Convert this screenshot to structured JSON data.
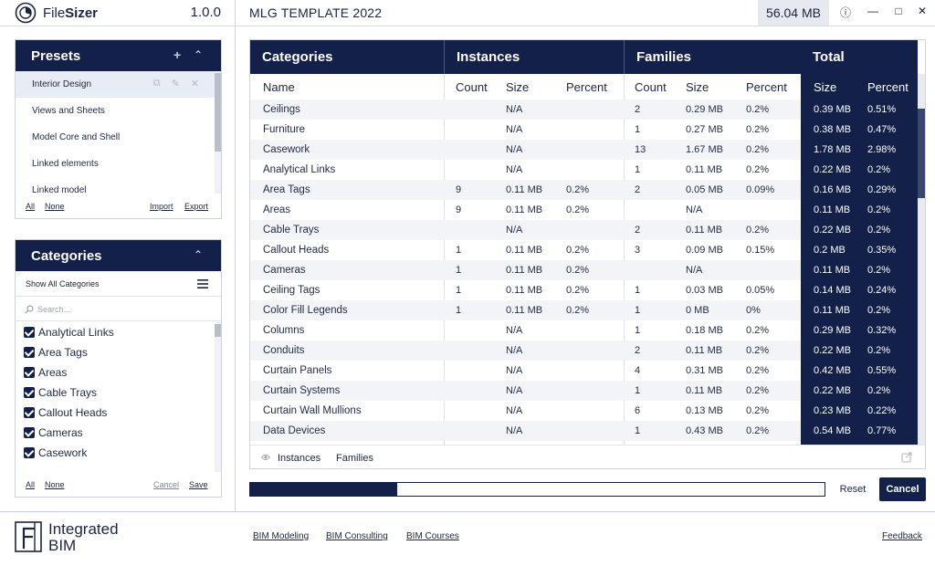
{
  "app": {
    "name_prefix": "File",
    "name_bold": "Sizer",
    "version": "1.0.0"
  },
  "titlebar": {
    "document": "MLG TEMPLATE 2022",
    "file_size": "56.04 MB"
  },
  "presets": {
    "title": "Presets",
    "items": [
      "Interior Design",
      "Views and Sheets",
      "Model Core and Shell",
      "Linked elements",
      "Linked model"
    ],
    "footer": {
      "all": "All",
      "none": "None",
      "import": "Import",
      "export": "Export"
    }
  },
  "categories_panel": {
    "title": "Categories",
    "show_all": "Show All Categories",
    "search_placeholder": "Search...",
    "items": [
      "Analytical Links",
      "Area Tags",
      "Areas",
      "Cable Trays",
      "Callout Heads",
      "Cameras",
      "Casework"
    ],
    "footer": {
      "all": "All",
      "none": "None",
      "cancel": "Cancel",
      "save": "Save"
    }
  },
  "table": {
    "groups": {
      "categories": "Categories",
      "instances": "Instances",
      "families": "Families",
      "total": "Total"
    },
    "columns": {
      "name": "Name",
      "count": "Count",
      "size": "Size",
      "percent": "Percent"
    },
    "rows": [
      {
        "name": "Ceilings",
        "ic": "",
        "is": "N/A",
        "ip": "",
        "fc": "2",
        "fs": "0.29 MB",
        "fp": "0.2%",
        "ts": "0.39 MB",
        "tp": "0.51%"
      },
      {
        "name": "Furniture",
        "ic": "",
        "is": "N/A",
        "ip": "",
        "fc": "1",
        "fs": "0.27 MB",
        "fp": "0.2%",
        "ts": "0.38 MB",
        "tp": "0.47%"
      },
      {
        "name": "Casework",
        "ic": "",
        "is": "N/A",
        "ip": "",
        "fc": "13",
        "fs": "1.67 MB",
        "fp": "0.2%",
        "ts": "1.78 MB",
        "tp": "2.98%"
      },
      {
        "name": "Analytical Links",
        "ic": "",
        "is": "N/A",
        "ip": "",
        "fc": "1",
        "fs": "0.11 MB",
        "fp": "0.2%",
        "ts": "0.22 MB",
        "tp": "0.2%"
      },
      {
        "name": "Area Tags",
        "ic": "9",
        "is": "0.11 MB",
        "ip": "0.2%",
        "fc": "2",
        "fs": "0.05 MB",
        "fp": "0.09%",
        "ts": "0.16 MB",
        "tp": "0.29%"
      },
      {
        "name": "Areas",
        "ic": "9",
        "is": "0.11 MB",
        "ip": "0.2%",
        "fc": "",
        "fs": "N/A",
        "fp": "",
        "ts": "0.11 MB",
        "tp": "0.2%"
      },
      {
        "name": "Cable Trays",
        "ic": "",
        "is": "N/A",
        "ip": "",
        "fc": "2",
        "fs": "0.11 MB",
        "fp": "0.2%",
        "ts": "0.22 MB",
        "tp": "0.2%"
      },
      {
        "name": "Callout Heads",
        "ic": "1",
        "is": "0.11 MB",
        "ip": "0.2%",
        "fc": "3",
        "fs": "0.09 MB",
        "fp": "0.15%",
        "ts": "0.2 MB",
        "tp": "0.35%"
      },
      {
        "name": "Cameras",
        "ic": "1",
        "is": "0.11 MB",
        "ip": "0.2%",
        "fc": "",
        "fs": "N/A",
        "fp": "",
        "ts": "0.11 MB",
        "tp": "0.2%"
      },
      {
        "name": "Ceiling Tags",
        "ic": "1",
        "is": "0.11 MB",
        "ip": "0.2%",
        "fc": "1",
        "fs": "0.03 MB",
        "fp": "0.05%",
        "ts": "0.14 MB",
        "tp": "0.24%"
      },
      {
        "name": "Color Fill Legends",
        "ic": "1",
        "is": "0.11 MB",
        "ip": "0.2%",
        "fc": "1",
        "fs": "0 MB",
        "fp": "0%",
        "ts": "0.11 MB",
        "tp": "0.2%"
      },
      {
        "name": "Columns",
        "ic": "",
        "is": "N/A",
        "ip": "",
        "fc": "1",
        "fs": "0.18 MB",
        "fp": "0.2%",
        "ts": "0.29 MB",
        "tp": "0.32%"
      },
      {
        "name": "Conduits",
        "ic": "",
        "is": "N/A",
        "ip": "",
        "fc": "2",
        "fs": "0.11 MB",
        "fp": "0.2%",
        "ts": "0.22 MB",
        "tp": "0.2%"
      },
      {
        "name": "Curtain Panels",
        "ic": "",
        "is": "N/A",
        "ip": "",
        "fc": "4",
        "fs": "0.31 MB",
        "fp": "0.2%",
        "ts": "0.42 MB",
        "tp": "0.55%"
      },
      {
        "name": "Curtain Systems",
        "ic": "",
        "is": "N/A",
        "ip": "",
        "fc": "1",
        "fs": "0.11 MB",
        "fp": "0.2%",
        "ts": "0.22 MB",
        "tp": "0.2%"
      },
      {
        "name": "Curtain Wall Mullions",
        "ic": "",
        "is": "N/A",
        "ip": "",
        "fc": "6",
        "fs": "0.13 MB",
        "fp": "0.2%",
        "ts": "0.23 MB",
        "tp": "0.22%"
      },
      {
        "name": "Data Devices",
        "ic": "",
        "is": "N/A",
        "ip": "",
        "fc": "1",
        "fs": "0.43 MB",
        "fp": "0.2%",
        "ts": "0.54 MB",
        "tp": "0.77%"
      }
    ],
    "footer": {
      "instances": "Instances",
      "families": "Families"
    }
  },
  "progress": {
    "fraction": 0.256
  },
  "buttons": {
    "reset": "Reset",
    "cancel": "Cancel"
  },
  "footer": {
    "brand_line1": "Integrated",
    "brand_line2": "BIM",
    "links": [
      "BIM Modeling",
      "BIM Consulting",
      "BIM Courses"
    ],
    "feedback": "Feedback"
  },
  "colors": {
    "navy": "#13204a",
    "row_band": "#f3f4f7",
    "text": "#1b2540"
  },
  "icons": [
    "filesizer-logo-icon",
    "plus-icon",
    "chevron-up-icon",
    "copy-icon",
    "pencil-icon",
    "close-icon",
    "menu-icon",
    "search-icon",
    "help-icon",
    "minimize-icon",
    "maximize-icon",
    "eye-icon",
    "export-icon",
    "integrated-bim-logo-icon"
  ]
}
